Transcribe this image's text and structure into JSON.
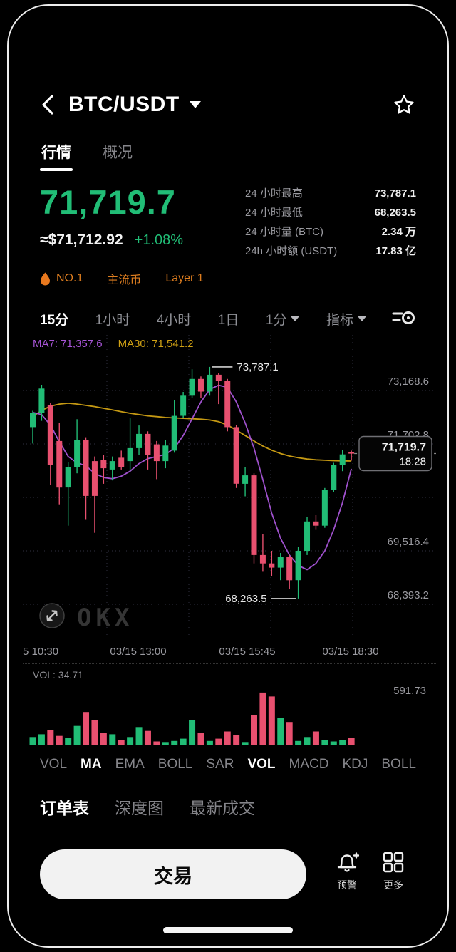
{
  "colors": {
    "up": "#21bd76",
    "down": "#e8506f",
    "ma7": "#a855d8",
    "ma30": "#d0a114",
    "accent_orange": "#dd7d1f",
    "axis_text": "#9b9ba1",
    "grid": "#30303f"
  },
  "header": {
    "title": "BTC/USDT"
  },
  "tabs": [
    {
      "label": "行情",
      "active": true
    },
    {
      "label": "概况",
      "active": false
    }
  ],
  "price": {
    "last": "71,719.7",
    "fiat": "≈$71,712.92",
    "change": "+1.08%"
  },
  "badges": [
    {
      "icon": "flame-icon",
      "label": "NO.1"
    },
    {
      "label": "主流币"
    },
    {
      "label": "Layer 1"
    }
  ],
  "stats": [
    {
      "label": "24 小时最高",
      "value": "73,787.1"
    },
    {
      "label": "24 小时最低",
      "value": "68,263.5"
    },
    {
      "label": "24 小时量 (BTC)",
      "value": "2.34 万"
    },
    {
      "label": "24h 小时额 (USDT)",
      "value": "17.83 亿"
    }
  ],
  "timeframes": [
    {
      "label": "15分",
      "active": true,
      "caret": false
    },
    {
      "label": "1小时",
      "active": false,
      "caret": false
    },
    {
      "label": "4小时",
      "active": false,
      "caret": false
    },
    {
      "label": "1日",
      "active": false,
      "caret": false
    },
    {
      "label": "1分",
      "active": false,
      "caret": true
    },
    {
      "label": "指标",
      "active": false,
      "caret": true
    }
  ],
  "watermark": "OKX",
  "chart_data": {
    "type": "candlestick",
    "interval": "15m",
    "ma7_label": "MA7: 71,357.6",
    "ma30_label": "MA30: 71,541.2",
    "high_label": "73,787.1",
    "low_label": "68,263.5",
    "current_price": "71,719.7",
    "current_time": "18:28",
    "high_candle": 20,
    "low_candle": 30,
    "y_max": 74550,
    "y_min": 67242,
    "y_axis_labels": [
      {
        "text": "73,168.6",
        "line": 0
      },
      {
        "text": "71,702.8",
        "line": 1
      },
      {
        "text": "69,516.4",
        "line": 3
      },
      {
        "text": "68,393.2",
        "line": 4
      }
    ],
    "x_axis_labels": [
      "5 10:30",
      "03/15 13:00",
      "03/15 15:45",
      "03/15 18:30"
    ],
    "candles": [
      [
        72350,
        72740,
        71960,
        72680
      ],
      [
        72680,
        73360,
        72500,
        73270
      ],
      [
        72880,
        72930,
        70970,
        71450
      ],
      [
        72020,
        72450,
        70510,
        70910
      ],
      [
        70910,
        71510,
        70000,
        71400
      ],
      [
        71400,
        72540,
        71250,
        72050
      ],
      [
        72050,
        72110,
        70140,
        70710
      ],
      [
        71540,
        71650,
        69830,
        70710
      ],
      [
        71570,
        71680,
        71000,
        71370
      ],
      [
        71340,
        71650,
        71080,
        71540
      ],
      [
        71620,
        71790,
        71340,
        71400
      ],
      [
        71540,
        72560,
        71310,
        71850
      ],
      [
        71850,
        72390,
        71680,
        72190
      ],
      [
        72190,
        72250,
        71340,
        71680
      ],
      [
        71940,
        72020,
        71110,
        71540
      ],
      [
        71540,
        72050,
        71370,
        71910
      ],
      [
        71790,
        72990,
        71740,
        72620
      ],
      [
        72620,
        73190,
        72560,
        73100
      ],
      [
        73100,
        73730,
        73050,
        73500
      ],
      [
        73500,
        73560,
        73050,
        73200
      ],
      [
        73200,
        73787.1,
        73100,
        73600
      ],
      [
        73600,
        73650,
        72900,
        73450
      ],
      [
        73450,
        73500,
        72250,
        72350
      ],
      [
        72350,
        72400,
        70900,
        71000
      ],
      [
        71000,
        71400,
        70700,
        71200
      ],
      [
        71200,
        71250,
        69100,
        69300
      ],
      [
        69300,
        69800,
        68900,
        69100
      ],
      [
        69100,
        69400,
        68800,
        69000
      ],
      [
        69000,
        69350,
        68700,
        69250
      ],
      [
        69250,
        69300,
        68500,
        68700
      ],
      [
        68700,
        69500,
        68263.5,
        69400
      ],
      [
        69400,
        70200,
        69300,
        70100
      ],
      [
        70100,
        70250,
        69900,
        70000
      ],
      [
        70000,
        70900,
        69950,
        70850
      ],
      [
        70850,
        71500,
        70800,
        71450
      ],
      [
        71450,
        71800,
        71300,
        71700
      ],
      [
        71750,
        71790,
        71550,
        71719.7
      ]
    ],
    "ma7": [
      72700,
      72650,
      72400,
      72000,
      71650,
      71500,
      71430,
      71250,
      71150,
      71120,
      71180,
      71300,
      71480,
      71600,
      71650,
      71700,
      71850,
      72150,
      72550,
      72950,
      73250,
      73350,
      73300,
      72950,
      72450,
      71850,
      71100,
      70300,
      69700,
      69300,
      69050,
      68950,
      69100,
      69400,
      69900,
      70550,
      71357.6
    ],
    "ma30": [
      72600,
      72750,
      72850,
      72900,
      72920,
      72900,
      72870,
      72840,
      72800,
      72760,
      72720,
      72680,
      72650,
      72620,
      72600,
      72580,
      72570,
      72560,
      72550,
      72540,
      72520,
      72480,
      72400,
      72280,
      72150,
      72020,
      71900,
      71800,
      71720,
      71660,
      71620,
      71590,
      71570,
      71560,
      71550,
      71545,
      71541.2
    ],
    "volume": {
      "label": "VOL: 34.71",
      "max_label": "591.73",
      "values": [
        0.15,
        0.2,
        0.28,
        0.17,
        0.13,
        0.35,
        0.6,
        0.45,
        0.22,
        0.2,
        0.1,
        0.15,
        0.33,
        0.26,
        0.07,
        0.06,
        0.08,
        0.12,
        0.45,
        0.23,
        0.08,
        0.12,
        0.25,
        0.18,
        0.06,
        0.55,
        0.95,
        0.88,
        0.5,
        0.42,
        0.08,
        0.15,
        0.25,
        0.1,
        0.07,
        0.09,
        0.13
      ]
    }
  },
  "indicator_tabs": [
    {
      "label": "VOL",
      "active": false
    },
    {
      "label": "MA",
      "active": true
    },
    {
      "label": "EMA",
      "active": false
    },
    {
      "label": "BOLL",
      "active": false
    },
    {
      "label": "SAR",
      "active": false
    },
    {
      "label": "VOL",
      "active": true
    },
    {
      "label": "MACD",
      "active": false
    },
    {
      "label": "KDJ",
      "active": false
    },
    {
      "label": "BOLL",
      "active": false
    }
  ],
  "orderbook_tabs": [
    {
      "label": "订单表",
      "active": true
    },
    {
      "label": "深度图",
      "active": false
    },
    {
      "label": "最新成交",
      "active": false
    }
  ],
  "footer": {
    "trade_label": "交易",
    "alert_label": "预警",
    "more_label": "更多"
  }
}
